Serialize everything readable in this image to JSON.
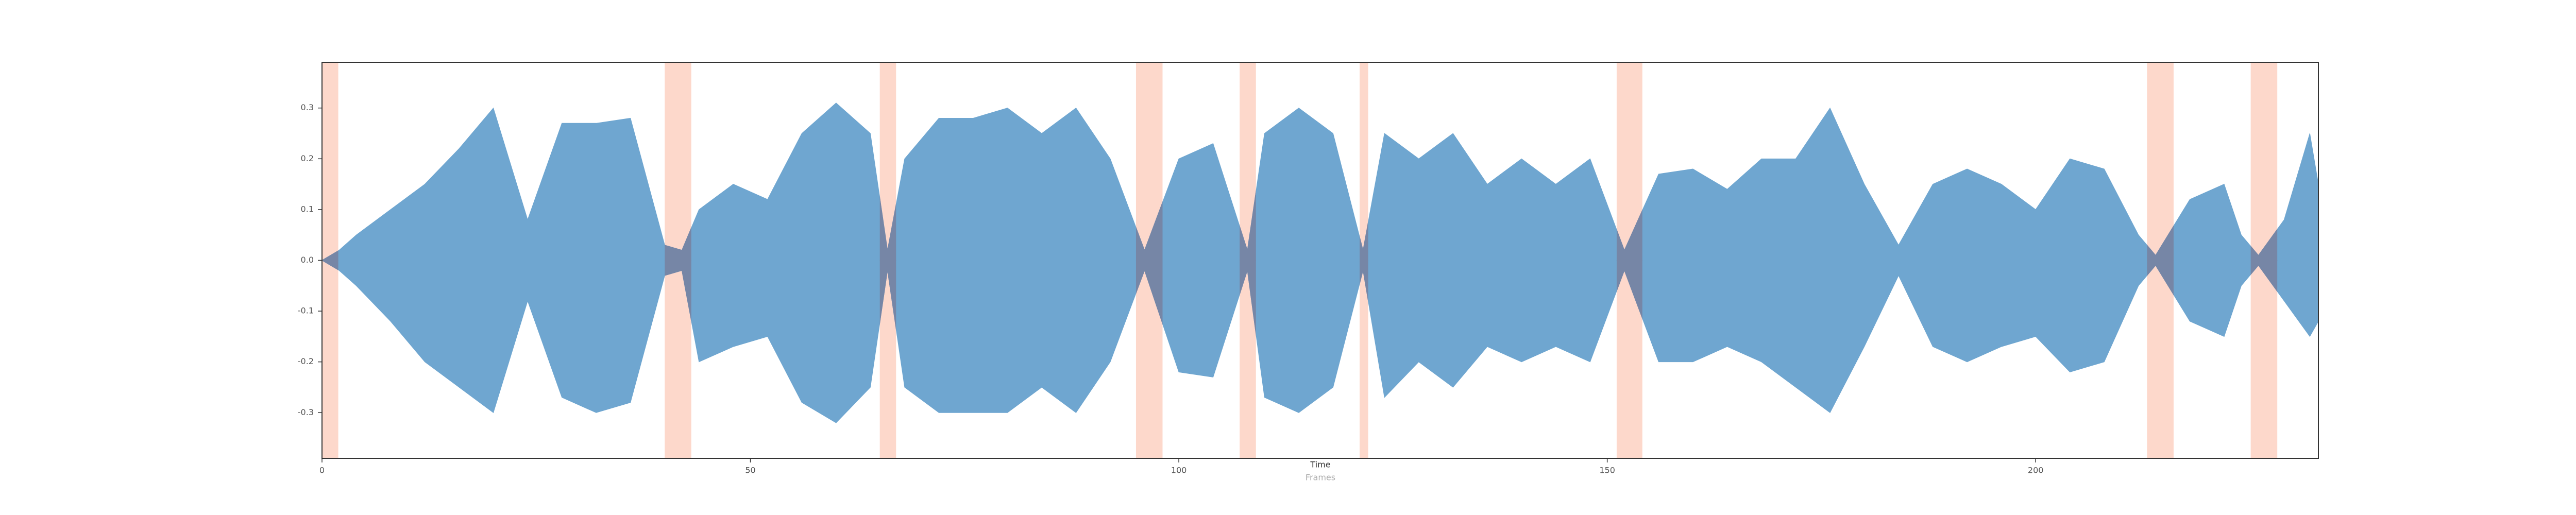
{
  "chart_data": {
    "type": "waveform",
    "xlabel": "Time",
    "xsublabel": "Frames",
    "xlim": [
      0,
      233
    ],
    "xticks": [
      0,
      50,
      100,
      150,
      200
    ],
    "ylim": [
      -0.39,
      0.39
    ],
    "yticks": [
      0.3,
      0.2,
      0.1,
      {
        "value": 0,
        "label": "0.0"
      },
      -0.1,
      -0.2,
      -0.3
    ],
    "span_color": "#fdd8cb",
    "silence_color": "#7686a6",
    "silence_spans": [
      [
        0,
        1.9
      ],
      [
        40,
        43.1
      ],
      [
        65.1,
        67
      ],
      [
        95,
        98.1
      ],
      [
        107.1,
        109
      ],
      [
        121.1,
        122.1
      ],
      [
        151.1,
        154.1
      ],
      [
        213,
        216.1
      ],
      [
        225.1,
        228.2
      ]
    ],
    "x": [
      0,
      2,
      4,
      8,
      12,
      16,
      20,
      24,
      28,
      32,
      36,
      40,
      42,
      44,
      48,
      52,
      56,
      60,
      64,
      66,
      68,
      72,
      76,
      80,
      84,
      88,
      92,
      96,
      100,
      104,
      108,
      110,
      114,
      118,
      121.5,
      124,
      128,
      132,
      136,
      140,
      144,
      148,
      152,
      156,
      160,
      164,
      168,
      172,
      176,
      180,
      184,
      188,
      192,
      196,
      200,
      204,
      208,
      212,
      214,
      218,
      222,
      224,
      226,
      229,
      232,
      233
    ],
    "series": [
      {
        "name": "upper",
        "color": "#6fa6d0",
        "values": [
          0.0,
          0.02,
          0.05,
          0.1,
          0.15,
          0.22,
          0.3,
          0.08,
          0.27,
          0.27,
          0.28,
          0.03,
          0.02,
          0.1,
          0.15,
          0.12,
          0.25,
          0.31,
          0.25,
          0.02,
          0.2,
          0.28,
          0.28,
          0.3,
          0.25,
          0.3,
          0.2,
          0.02,
          0.2,
          0.23,
          0.02,
          0.25,
          0.3,
          0.25,
          0.02,
          0.25,
          0.2,
          0.25,
          0.15,
          0.2,
          0.15,
          0.2,
          0.02,
          0.17,
          0.18,
          0.14,
          0.2,
          0.2,
          0.3,
          0.15,
          0.03,
          0.15,
          0.18,
          0.15,
          0.1,
          0.2,
          0.18,
          0.05,
          0.01,
          0.12,
          0.15,
          0.05,
          0.01,
          0.08,
          0.25,
          0.15
        ]
      },
      {
        "name": "lower",
        "color": "#6fa6d0",
        "values": [
          0.0,
          -0.02,
          -0.05,
          -0.12,
          -0.2,
          -0.25,
          -0.3,
          -0.08,
          -0.27,
          -0.3,
          -0.28,
          -0.03,
          -0.02,
          -0.2,
          -0.17,
          -0.15,
          -0.28,
          -0.32,
          -0.25,
          -0.02,
          -0.25,
          -0.3,
          -0.3,
          -0.3,
          -0.25,
          -0.3,
          -0.2,
          -0.02,
          -0.22,
          -0.23,
          -0.02,
          -0.27,
          -0.3,
          -0.25,
          -0.02,
          -0.27,
          -0.2,
          -0.25,
          -0.17,
          -0.2,
          -0.17,
          -0.2,
          -0.02,
          -0.2,
          -0.2,
          -0.17,
          -0.2,
          -0.25,
          -0.3,
          -0.17,
          -0.03,
          -0.17,
          -0.2,
          -0.17,
          -0.15,
          -0.22,
          -0.2,
          -0.05,
          -0.01,
          -0.12,
          -0.15,
          -0.05,
          -0.01,
          -0.08,
          -0.15,
          -0.12
        ]
      }
    ]
  }
}
